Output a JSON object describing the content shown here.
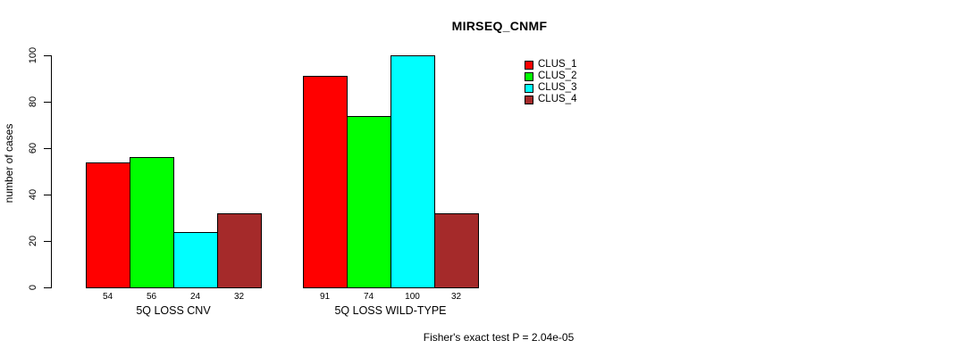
{
  "chart_data": {
    "type": "bar",
    "title": "MIRSEQ_CNMF",
    "ylabel": "number of cases",
    "xlabel": "",
    "ylim": [
      0,
      100
    ],
    "yticks": [
      0,
      20,
      40,
      60,
      80,
      100
    ],
    "grid": false,
    "legend_position": "right",
    "bar_value_labels_shown": true,
    "categories": [
      "5Q LOSS CNV",
      "5Q LOSS WILD-TYPE"
    ],
    "series": [
      {
        "name": "CLUS_1",
        "color": "#FF0000",
        "values": [
          54,
          91
        ]
      },
      {
        "name": "CLUS_2",
        "color": "#00FF00",
        "values": [
          56,
          74
        ]
      },
      {
        "name": "CLUS_3",
        "color": "#00FFFF",
        "values": [
          24,
          100
        ]
      },
      {
        "name": "CLUS_4",
        "color": "#A52A2A",
        "values": [
          32,
          32
        ]
      }
    ],
    "annotation": "Fisher's exact test P = 2.04e-05"
  },
  "colors": {
    "background": "#FFFFFF",
    "axis": "#000000",
    "text": "#000000"
  }
}
